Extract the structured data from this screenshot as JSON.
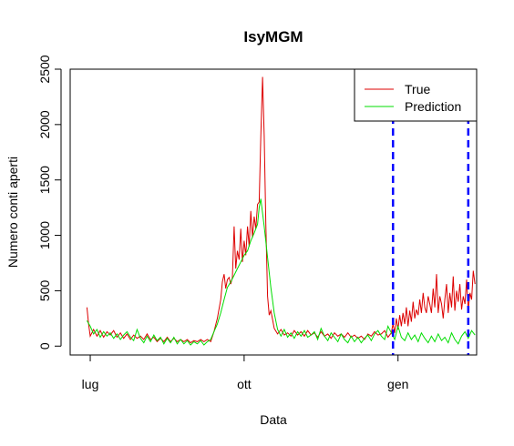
{
  "chart_data": {
    "type": "line",
    "title": "IsyMGM",
    "xlabel": "Data",
    "ylabel": "Numero conti aperti",
    "x_range_days": [
      0,
      243
    ],
    "ylim": [
      -80,
      2500
    ],
    "x_ticks": [
      {
        "label": "lug",
        "day": 12
      },
      {
        "label": "ott",
        "day": 104
      },
      {
        "label": "gen",
        "day": 196
      }
    ],
    "y_ticks": [
      0,
      500,
      1000,
      1500,
      2000,
      2500
    ],
    "grid": false,
    "legend": {
      "position": "top-right",
      "entries": [
        "True",
        "Prediction"
      ]
    },
    "vlines": {
      "color": "#0000ff",
      "style": "dashed",
      "x_days": [
        193,
        238
      ]
    },
    "series": [
      {
        "name": "True",
        "color": "#dd0000",
        "points": [
          [
            10,
            350
          ],
          [
            11,
            200
          ],
          [
            12,
            90
          ],
          [
            14,
            150
          ],
          [
            16,
            90
          ],
          [
            18,
            140
          ],
          [
            20,
            80
          ],
          [
            22,
            130
          ],
          [
            24,
            100
          ],
          [
            26,
            140
          ],
          [
            28,
            80
          ],
          [
            30,
            120
          ],
          [
            32,
            70
          ],
          [
            34,
            110
          ],
          [
            36,
            60
          ],
          [
            38,
            100
          ],
          [
            40,
            70
          ],
          [
            42,
            90
          ],
          [
            44,
            60
          ],
          [
            46,
            110
          ],
          [
            48,
            60
          ],
          [
            50,
            80
          ],
          [
            52,
            40
          ],
          [
            54,
            70
          ],
          [
            56,
            40
          ],
          [
            58,
            80
          ],
          [
            60,
            40
          ],
          [
            62,
            70
          ],
          [
            64,
            40
          ],
          [
            66,
            60
          ],
          [
            68,
            40
          ],
          [
            70,
            60
          ],
          [
            72,
            30
          ],
          [
            74,
            50
          ],
          [
            76,
            40
          ],
          [
            78,
            60
          ],
          [
            80,
            40
          ],
          [
            82,
            60
          ],
          [
            84,
            40
          ],
          [
            86,
            130
          ],
          [
            88,
            250
          ],
          [
            90,
            420
          ],
          [
            91,
            580
          ],
          [
            92,
            650
          ],
          [
            93,
            520
          ],
          [
            94,
            600
          ],
          [
            95,
            620
          ],
          [
            96,
            560
          ],
          [
            97,
            620
          ],
          [
            98,
            1080
          ],
          [
            99,
            700
          ],
          [
            100,
            860
          ],
          [
            101,
            780
          ],
          [
            102,
            1060
          ],
          [
            103,
            760
          ],
          [
            104,
            950
          ],
          [
            105,
            820
          ],
          [
            106,
            1080
          ],
          [
            107,
            900
          ],
          [
            108,
            1220
          ],
          [
            109,
            980
          ],
          [
            110,
            1170
          ],
          [
            111,
            1060
          ],
          [
            112,
            1280
          ],
          [
            113,
            1300
          ],
          [
            114,
            1900
          ],
          [
            115,
            2430
          ],
          [
            116,
            1900
          ],
          [
            117,
            1100
          ],
          [
            118,
            450
          ],
          [
            119,
            280
          ],
          [
            120,
            320
          ],
          [
            121,
            240
          ],
          [
            122,
            160
          ],
          [
            124,
            110
          ],
          [
            126,
            150
          ],
          [
            128,
            100
          ],
          [
            130,
            120
          ],
          [
            132,
            90
          ],
          [
            134,
            140
          ],
          [
            136,
            100
          ],
          [
            138,
            130
          ],
          [
            140,
            90
          ],
          [
            142,
            140
          ],
          [
            144,
            100
          ],
          [
            146,
            120
          ],
          [
            148,
            80
          ],
          [
            150,
            130
          ],
          [
            152,
            90
          ],
          [
            154,
            110
          ],
          [
            156,
            70
          ],
          [
            158,
            120
          ],
          [
            160,
            90
          ],
          [
            162,
            110
          ],
          [
            164,
            80
          ],
          [
            166,
            120
          ],
          [
            168,
            80
          ],
          [
            170,
            100
          ],
          [
            172,
            70
          ],
          [
            174,
            90
          ],
          [
            176,
            60
          ],
          [
            178,
            110
          ],
          [
            180,
            90
          ],
          [
            182,
            130
          ],
          [
            184,
            100
          ],
          [
            186,
            110
          ],
          [
            188,
            140
          ],
          [
            190,
            80
          ],
          [
            192,
            120
          ],
          [
            193,
            200
          ],
          [
            194,
            120
          ],
          [
            195,
            250
          ],
          [
            196,
            150
          ],
          [
            197,
            280
          ],
          [
            198,
            180
          ],
          [
            199,
            300
          ],
          [
            200,
            200
          ],
          [
            201,
            350
          ],
          [
            202,
            180
          ],
          [
            203,
            320
          ],
          [
            204,
            220
          ],
          [
            205,
            400
          ],
          [
            206,
            250
          ],
          [
            207,
            330
          ],
          [
            208,
            280
          ],
          [
            209,
            420
          ],
          [
            210,
            300
          ],
          [
            211,
            480
          ],
          [
            212,
            350
          ],
          [
            213,
            300
          ],
          [
            214,
            450
          ],
          [
            215,
            380
          ],
          [
            216,
            300
          ],
          [
            217,
            520
          ],
          [
            218,
            350
          ],
          [
            219,
            650
          ],
          [
            220,
            300
          ],
          [
            221,
            450
          ],
          [
            222,
            380
          ],
          [
            223,
            250
          ],
          [
            224,
            420
          ],
          [
            225,
            560
          ],
          [
            226,
            300
          ],
          [
            227,
            480
          ],
          [
            228,
            350
          ],
          [
            229,
            630
          ],
          [
            230,
            320
          ],
          [
            231,
            500
          ],
          [
            232,
            400
          ],
          [
            233,
            560
          ],
          [
            234,
            330
          ],
          [
            235,
            450
          ],
          [
            236,
            380
          ],
          [
            237,
            600
          ],
          [
            238,
            330
          ],
          [
            239,
            480
          ],
          [
            240,
            420
          ],
          [
            241,
            680
          ],
          [
            242,
            560
          ]
        ]
      },
      {
        "name": "Prediction",
        "color": "#00dd00",
        "points": [
          [
            10,
            230
          ],
          [
            12,
            180
          ],
          [
            14,
            110
          ],
          [
            16,
            150
          ],
          [
            18,
            80
          ],
          [
            20,
            130
          ],
          [
            22,
            90
          ],
          [
            24,
            120
          ],
          [
            26,
            70
          ],
          [
            28,
            110
          ],
          [
            30,
            60
          ],
          [
            32,
            100
          ],
          [
            34,
            130
          ],
          [
            36,
            80
          ],
          [
            38,
            50
          ],
          [
            40,
            150
          ],
          [
            42,
            70
          ],
          [
            44,
            30
          ],
          [
            46,
            90
          ],
          [
            48,
            40
          ],
          [
            50,
            100
          ],
          [
            52,
            50
          ],
          [
            54,
            80
          ],
          [
            56,
            20
          ],
          [
            58,
            70
          ],
          [
            60,
            30
          ],
          [
            62,
            80
          ],
          [
            64,
            20
          ],
          [
            66,
            60
          ],
          [
            68,
            20
          ],
          [
            70,
            50
          ],
          [
            72,
            10
          ],
          [
            74,
            40
          ],
          [
            76,
            20
          ],
          [
            78,
            50
          ],
          [
            80,
            10
          ],
          [
            82,
            40
          ],
          [
            84,
            60
          ],
          [
            86,
            130
          ],
          [
            88,
            200
          ],
          [
            90,
            300
          ],
          [
            92,
            420
          ],
          [
            94,
            530
          ],
          [
            96,
            580
          ],
          [
            98,
            640
          ],
          [
            100,
            700
          ],
          [
            102,
            760
          ],
          [
            104,
            820
          ],
          [
            106,
            860
          ],
          [
            108,
            950
          ],
          [
            110,
            1020
          ],
          [
            112,
            1100
          ],
          [
            113,
            1250
          ],
          [
            114,
            1330
          ],
          [
            115,
            1200
          ],
          [
            116,
            1080
          ],
          [
            118,
            800
          ],
          [
            120,
            530
          ],
          [
            122,
            300
          ],
          [
            124,
            150
          ],
          [
            126,
            90
          ],
          [
            128,
            150
          ],
          [
            130,
            80
          ],
          [
            132,
            120
          ],
          [
            134,
            70
          ],
          [
            136,
            130
          ],
          [
            138,
            90
          ],
          [
            140,
            140
          ],
          [
            142,
            80
          ],
          [
            144,
            100
          ],
          [
            146,
            130
          ],
          [
            148,
            60
          ],
          [
            150,
            160
          ],
          [
            152,
            90
          ],
          [
            154,
            50
          ],
          [
            156,
            120
          ],
          [
            158,
            80
          ],
          [
            160,
            40
          ],
          [
            162,
            110
          ],
          [
            164,
            60
          ],
          [
            166,
            30
          ],
          [
            168,
            90
          ],
          [
            170,
            40
          ],
          [
            172,
            80
          ],
          [
            174,
            30
          ],
          [
            176,
            70
          ],
          [
            178,
            100
          ],
          [
            180,
            50
          ],
          [
            182,
            110
          ],
          [
            184,
            140
          ],
          [
            186,
            90
          ],
          [
            188,
            60
          ],
          [
            190,
            180
          ],
          [
            192,
            120
          ],
          [
            194,
            60
          ],
          [
            196,
            180
          ],
          [
            198,
            80
          ],
          [
            200,
            50
          ],
          [
            202,
            120
          ],
          [
            204,
            60
          ],
          [
            206,
            100
          ],
          [
            208,
            40
          ],
          [
            210,
            120
          ],
          [
            212,
            70
          ],
          [
            214,
            30
          ],
          [
            216,
            90
          ],
          [
            218,
            40
          ],
          [
            220,
            110
          ],
          [
            222,
            50
          ],
          [
            224,
            80
          ],
          [
            226,
            30
          ],
          [
            228,
            120
          ],
          [
            230,
            60
          ],
          [
            232,
            20
          ],
          [
            234,
            90
          ],
          [
            236,
            130
          ],
          [
            238,
            70
          ],
          [
            240,
            140
          ],
          [
            242,
            100
          ]
        ]
      }
    ]
  }
}
